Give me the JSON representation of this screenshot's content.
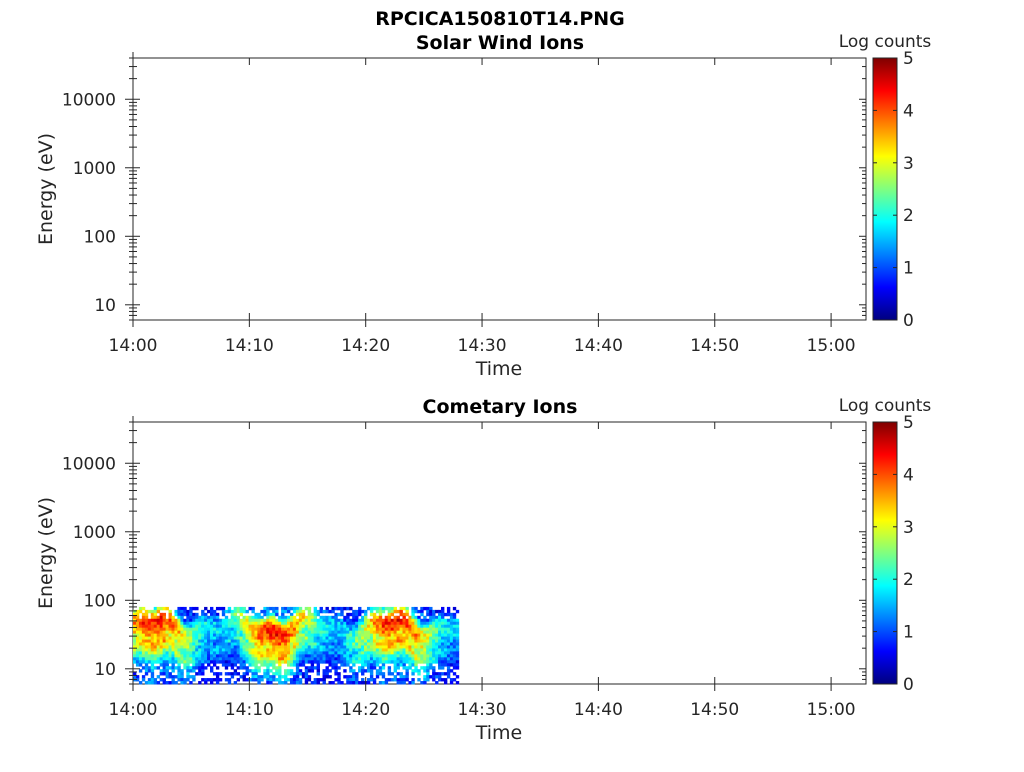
{
  "figure": {
    "title": "RPCICA150810T14.PNG"
  },
  "colorbar": {
    "label": "Log counts",
    "ticks": [
      "0",
      "1",
      "2",
      "3",
      "4",
      "5"
    ]
  },
  "chart_data": [
    {
      "type": "heatmap",
      "title": "Solar Wind Ions",
      "xlabel": "Time",
      "ylabel": "Energy (eV)",
      "x_range": [
        "14:00",
        "15:03"
      ],
      "x_ticks": [
        "14:00",
        "14:10",
        "14:20",
        "14:30",
        "14:40",
        "14:50",
        "15:00"
      ],
      "y_scale": "log",
      "y_range": [
        6,
        40000
      ],
      "y_ticks": [
        "10",
        "100",
        "1000",
        "10000"
      ],
      "z_label": "Log counts",
      "z_range": [
        0,
        5
      ],
      "data_time_range": [],
      "data_energy_range": []
    },
    {
      "type": "heatmap",
      "title": "Cometary Ions",
      "xlabel": "Time",
      "ylabel": "Energy (eV)",
      "x_range": [
        "14:00",
        "15:03"
      ],
      "x_ticks": [
        "14:00",
        "14:10",
        "14:20",
        "14:30",
        "14:40",
        "14:50",
        "15:00"
      ],
      "y_scale": "log",
      "y_range": [
        6,
        40000
      ],
      "y_ticks": [
        "10",
        "100",
        "1000",
        "10000"
      ],
      "z_label": "Log counts",
      "z_range": [
        0,
        5
      ],
      "data_time_range": [
        "14:00",
        "14:28"
      ],
      "data_energy_range": [
        6,
        80
      ],
      "energy_profile": [
        {
          "energy": 75,
          "log_counts": 1.2
        },
        {
          "energy": 60,
          "log_counts": 2.6
        },
        {
          "energy": 48,
          "log_counts": 3.6
        },
        {
          "energy": 38,
          "log_counts": 3.8
        },
        {
          "energy": 30,
          "log_counts": 3.4
        },
        {
          "energy": 24,
          "log_counts": 2.8
        },
        {
          "energy": 19,
          "log_counts": 3.2
        },
        {
          "energy": 15,
          "log_counts": 2.4
        },
        {
          "energy": 12,
          "log_counts": 1.8
        },
        {
          "energy": 9,
          "log_counts": 1.3
        },
        {
          "energy": 7,
          "log_counts": 1.0
        }
      ]
    }
  ]
}
